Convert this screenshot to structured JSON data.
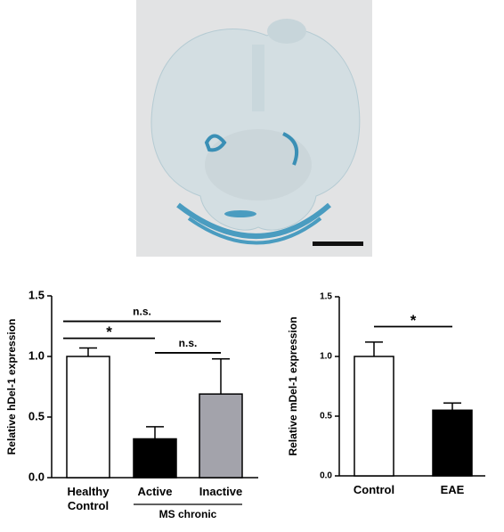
{
  "chart_data": [
    {
      "type": "bar",
      "ylabel": "Relative hDel-1 expression",
      "categories": [
        "Healthy Control",
        "Active",
        "Inactive"
      ],
      "values": [
        1.0,
        0.32,
        0.69
      ],
      "errors": [
        0.07,
        0.1,
        0.29
      ],
      "colors": [
        "#ffffff",
        "#000000",
        "#a3a3ab"
      ],
      "ylim": [
        0,
        1.5
      ],
      "yticks": [
        {
          "value": 0,
          "label": "0.0"
        },
        0.5,
        {
          "value": 1,
          "label": "1.0"
        },
        1.5
      ],
      "groups": [
        {
          "label": "MS chronic",
          "span": [
            1,
            2
          ]
        }
      ],
      "brackets": [
        {
          "label": "n.s.",
          "y": 1.29,
          "between": [
            0,
            2
          ]
        },
        {
          "label": "*",
          "y": 1.15,
          "between": [
            0,
            1
          ]
        },
        {
          "label": "n.s.",
          "y": 1.03,
          "between": [
            1,
            2
          ]
        }
      ]
    },
    {
      "type": "bar",
      "ylabel": "Relative mDel-1 expression",
      "categories": [
        "Control",
        "EAE"
      ],
      "values": [
        1.0,
        0.55
      ],
      "errors": [
        0.12,
        0.06
      ],
      "colors": [
        "#ffffff",
        "#000000"
      ],
      "ylim": [
        0,
        1.5
      ],
      "yticks": [
        {
          "value": 0,
          "label": "0.0"
        },
        0.5,
        {
          "value": 1,
          "label": "1.0"
        },
        1.5
      ],
      "brackets": [
        {
          "label": "*",
          "y": 1.25,
          "between": [
            0,
            1
          ]
        }
      ]
    }
  ]
}
